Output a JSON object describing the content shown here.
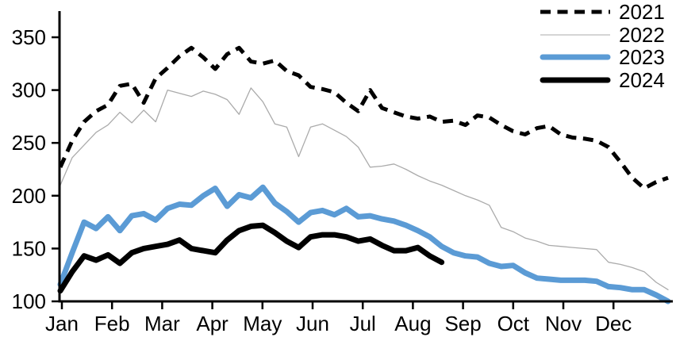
{
  "chart_data": {
    "type": "line",
    "title": "",
    "xlabel": "",
    "ylabel": "",
    "x_unit": "week-of-year",
    "x_tick_labels": [
      "Jan",
      "Feb",
      "Mar",
      "Apr",
      "May",
      "Jun",
      "Jul",
      "Aug",
      "Sep",
      "Oct",
      "Nov",
      "Dec"
    ],
    "y_ticks": [
      100,
      150,
      200,
      250,
      300,
      350
    ],
    "ylim": [
      100,
      375
    ],
    "grid": false,
    "legend_position": "top-right",
    "series": [
      {
        "name": "2021",
        "color": "#000000",
        "style": "dashed",
        "line_width": 5,
        "values": [
          227,
          252,
          270,
          280,
          286,
          304,
          306,
          288,
          311,
          321,
          332,
          340,
          331,
          320,
          334,
          340,
          327,
          325,
          328,
          318,
          314,
          303,
          301,
          298,
          288,
          280,
          300,
          283,
          279,
          275,
          273,
          275,
          270,
          271,
          267,
          276,
          274,
          267,
          261,
          258,
          264,
          266,
          258,
          255,
          254,
          252,
          246,
          232,
          217,
          207,
          213,
          217
        ]
      },
      {
        "name": "2022",
        "color": "#ababab",
        "style": "solid",
        "line_width": 1.3,
        "values": [
          210,
          236,
          248,
          260,
          267,
          279,
          269,
          281,
          270,
          300,
          297,
          294,
          299,
          296,
          291,
          277,
          302,
          289,
          268,
          265,
          237,
          265,
          268,
          262,
          256,
          246,
          227,
          228,
          230,
          225,
          219,
          214,
          210,
          205,
          200,
          196,
          191,
          170,
          166,
          160,
          157,
          153,
          152,
          151,
          150,
          149,
          137,
          135,
          132,
          128,
          118,
          111
        ]
      },
      {
        "name": "2023",
        "color": "#5b9bd5",
        "style": "solid",
        "line_width": 7,
        "values": [
          116,
          146,
          175,
          169,
          180,
          167,
          181,
          183,
          177,
          188,
          192,
          191,
          200,
          207,
          190,
          201,
          198,
          208,
          193,
          185,
          175,
          184,
          186,
          182,
          188,
          180,
          181,
          178,
          176,
          172,
          167,
          161,
          152,
          146,
          143,
          142,
          136,
          133,
          134,
          127,
          122,
          121,
          120,
          120,
          120,
          119,
          114,
          113,
          111,
          111,
          106,
          100
        ]
      },
      {
        "name": "2024",
        "color": "#000000",
        "style": "solid",
        "line_width": 7,
        "values": [
          110,
          128,
          143,
          139,
          144,
          136,
          146,
          150,
          152,
          154,
          158,
          150,
          148,
          146,
          158,
          167,
          171,
          172,
          165,
          157,
          151,
          161,
          163,
          163,
          161,
          157,
          159,
          153,
          148,
          148,
          151,
          143,
          137
        ]
      }
    ]
  }
}
